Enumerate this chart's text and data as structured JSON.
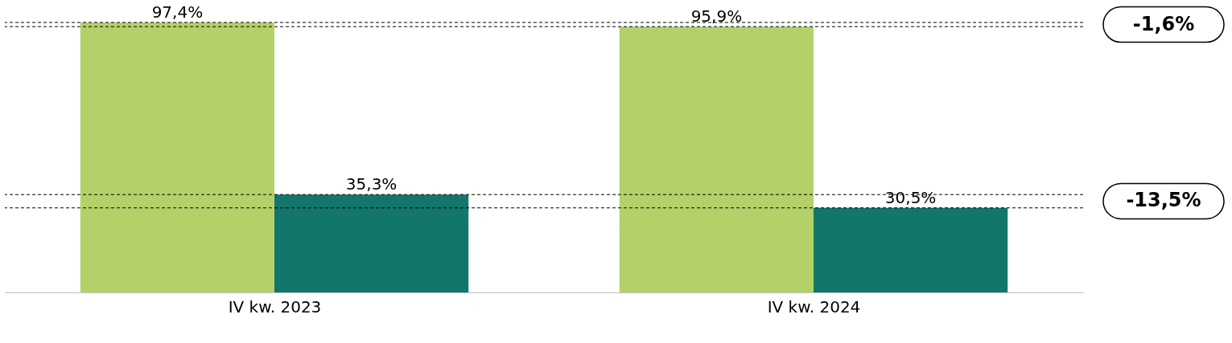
{
  "chart_data": {
    "type": "bar",
    "categories": [
      "IV kw. 2023",
      "IV kw. 2024"
    ],
    "series": [
      {
        "color": "#b3d168",
        "values": [
          97.4,
          95.9
        ],
        "value_labels": [
          "97,4%",
          "95,9%"
        ]
      },
      {
        "color": "#12766a",
        "values": [
          35.3,
          30.5
        ],
        "value_labels": [
          "35,3%",
          "30,5%"
        ]
      }
    ],
    "ref_lines": [
      {
        "axis": "y",
        "value": 97.4,
        "color": "#000000",
        "line_style": "dashed"
      },
      {
        "axis": "y",
        "value": 95.9,
        "color": "#000000",
        "line_style": "dashed"
      },
      {
        "axis": "y",
        "value": 35.3,
        "color": "#000000",
        "line_style": "dashed"
      },
      {
        "axis": "y",
        "value": 30.5,
        "color": "#000000",
        "line_style": "dashed"
      }
    ],
    "annotations": [
      "-1,6%",
      "-13,5%"
    ],
    "grid": false
  }
}
